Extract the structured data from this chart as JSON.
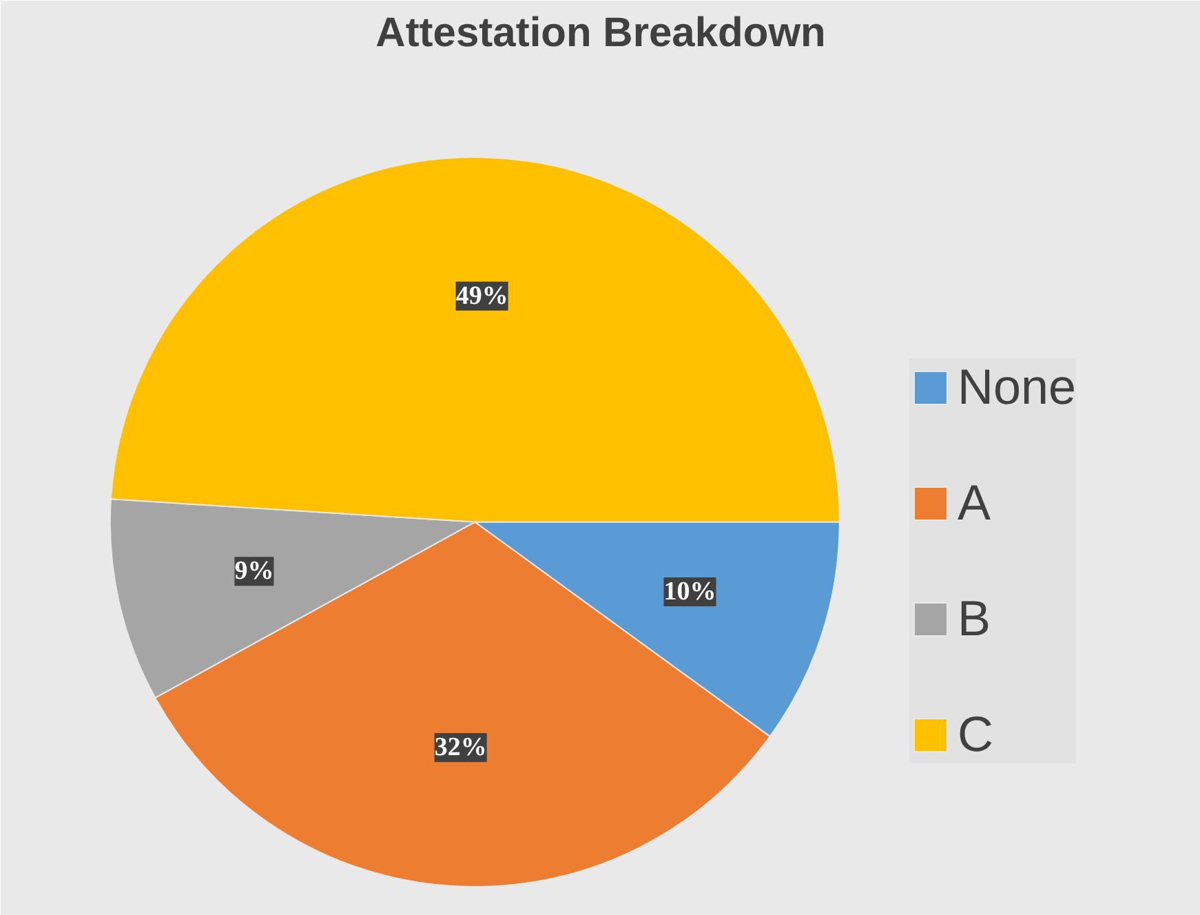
{
  "chart_data": {
    "type": "pie",
    "title": "Attestation Breakdown",
    "categories": [
      "None",
      "A",
      "B",
      "C"
    ],
    "values": [
      10,
      32,
      9,
      49
    ],
    "colors": [
      "#5b9bd5",
      "#ed7d31",
      "#a5a5a5",
      "#ffc000"
    ],
    "value_labels": [
      "10%",
      "32%",
      "9%",
      "49%"
    ],
    "legend": "right"
  }
}
